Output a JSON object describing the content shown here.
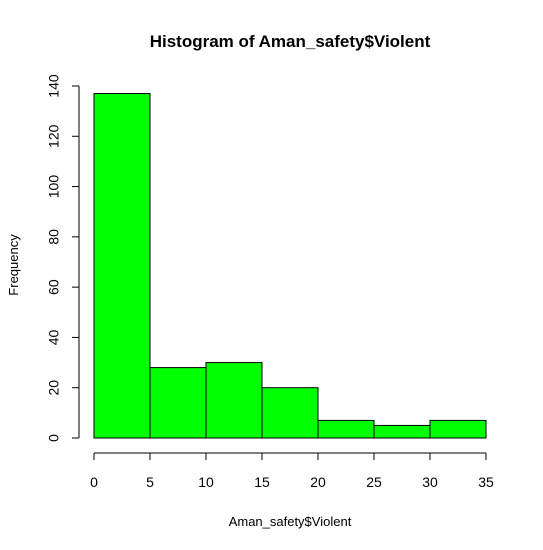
{
  "chart_data": {
    "type": "bar",
    "title": "Histogram of Aman_safety$Violent",
    "xlabel": "Aman_safety$Violent",
    "ylabel": "Frequency",
    "bins": [
      {
        "x0": 0,
        "x1": 5,
        "count": 137
      },
      {
        "x0": 5,
        "x1": 10,
        "count": 28
      },
      {
        "x0": 10,
        "x1": 15,
        "count": 30
      },
      {
        "x0": 15,
        "x1": 20,
        "count": 20
      },
      {
        "x0": 20,
        "x1": 25,
        "count": 7
      },
      {
        "x0": 25,
        "x1": 30,
        "count": 5
      },
      {
        "x0": 30,
        "x1": 35,
        "count": 7
      }
    ],
    "x_ticks": [
      "0",
      "5",
      "10",
      "15",
      "20",
      "25",
      "30",
      "35"
    ],
    "y_ticks": [
      "0",
      "20",
      "40",
      "60",
      "80",
      "100",
      "120",
      "140"
    ],
    "xlim": [
      0,
      35
    ],
    "ylim": [
      0,
      140
    ],
    "bar_color": "#00ff00",
    "grid": false,
    "legend": "none"
  }
}
